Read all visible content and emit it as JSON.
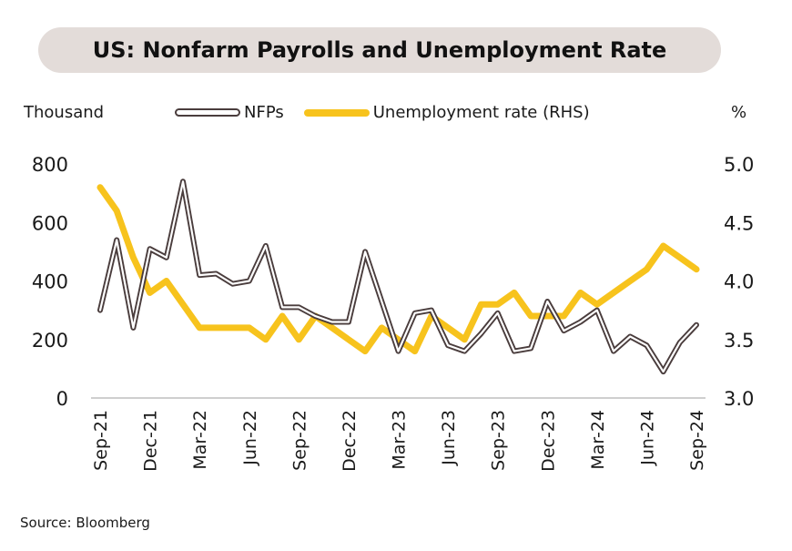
{
  "title": "US: Nonfarm Payrolls and Unemployment Rate",
  "left_unit": "Thousand",
  "right_unit": "%",
  "source": "Source: Bloomberg",
  "colors": {
    "nfp_outer": "#4a3d3d",
    "nfp_inner": "#ffffff",
    "unemployment": "#f7c31d",
    "title_bg": "#e3dcd9"
  },
  "chart_data": {
    "type": "line",
    "title": "US: Nonfarm Payrolls and Unemployment Rate",
    "ylabel": "Thousand",
    "y2label": "%",
    "ylim": [
      0,
      800
    ],
    "y2lim": [
      3.0,
      5.0
    ],
    "yticks": [
      "0",
      "200",
      "400",
      "600",
      "800"
    ],
    "y2ticks": [
      "3.0",
      "3.5",
      "4.0",
      "4.5",
      "5.0"
    ],
    "xticks": [
      "Sep-21",
      "Dec-21",
      "Mar-22",
      "Jun-22",
      "Sep-22",
      "Dec-22",
      "Mar-23",
      "Jun-23",
      "Sep-23",
      "Dec-23",
      "Mar-24",
      "Jun-24",
      "Sep-24"
    ],
    "legend": "top",
    "grid": false,
    "x": [
      "Sep-21",
      "Oct-21",
      "Nov-21",
      "Dec-21",
      "Jan-22",
      "Feb-22",
      "Mar-22",
      "Apr-22",
      "May-22",
      "Jun-22",
      "Jul-22",
      "Aug-22",
      "Sep-22",
      "Oct-22",
      "Nov-22",
      "Dec-22",
      "Jan-23",
      "Feb-23",
      "Mar-23",
      "Apr-23",
      "May-23",
      "Jun-23",
      "Jul-23",
      "Aug-23",
      "Sep-23",
      "Oct-23",
      "Nov-23",
      "Dec-23",
      "Jan-24",
      "Feb-24",
      "Mar-24",
      "Apr-24",
      "May-24",
      "Jun-24",
      "Jul-24",
      "Aug-24",
      "Sep-24"
    ],
    "series": [
      {
        "name": "NFPs",
        "axis": "left",
        "values": [
          300,
          540,
          240,
          510,
          480,
          740,
          420,
          425,
          390,
          400,
          520,
          310,
          310,
          280,
          260,
          260,
          500,
          330,
          160,
          290,
          300,
          180,
          160,
          220,
          290,
          160,
          170,
          330,
          230,
          260,
          300,
          160,
          210,
          180,
          90,
          190,
          250
        ]
      },
      {
        "name": "Unemployment rate (RHS)",
        "axis": "right",
        "values": [
          4.8,
          4.6,
          4.2,
          3.9,
          4.0,
          3.8,
          3.6,
          3.6,
          3.6,
          3.6,
          3.5,
          3.7,
          3.5,
          3.7,
          3.6,
          3.5,
          3.4,
          3.6,
          3.5,
          3.4,
          3.7,
          3.6,
          3.5,
          3.8,
          3.8,
          3.9,
          3.7,
          3.7,
          3.7,
          3.9,
          3.8,
          3.9,
          4.0,
          4.1,
          4.3,
          4.2,
          4.1
        ]
      }
    ]
  }
}
